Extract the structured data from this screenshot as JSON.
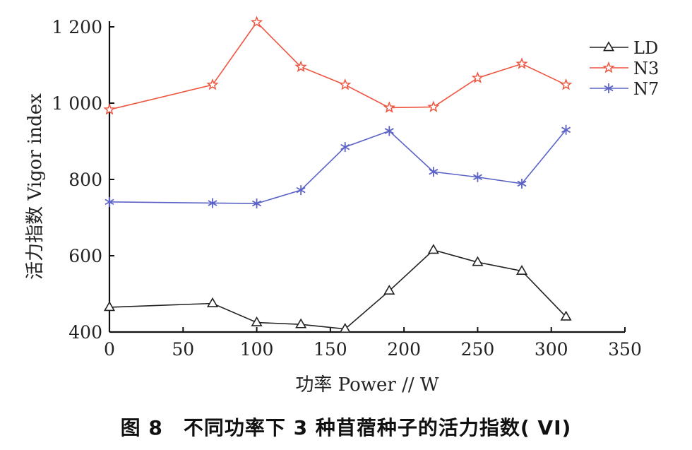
{
  "caption": "图 8　不同功率下 3 种苜蓿种子的活力指数( VI)",
  "chart_data": {
    "type": "line",
    "title": "",
    "xlabel": "功率 Power // W",
    "ylabel": "活力指数 Vigor index",
    "xlim": [
      0,
      350
    ],
    "ylim": [
      400,
      1200
    ],
    "xticks": [
      0,
      50,
      100,
      150,
      200,
      250,
      300,
      350
    ],
    "xtick_labels": [
      "0",
      "50",
      "100",
      "150",
      "200",
      "250",
      "300",
      "350"
    ],
    "yticks": [
      400,
      600,
      800,
      1000,
      1200
    ],
    "ytick_labels": [
      "400",
      "600",
      "800",
      "1 000",
      "1 200"
    ],
    "grid": false,
    "legend_position": "top-right",
    "x": [
      0,
      70,
      100,
      130,
      160,
      190,
      220,
      250,
      280,
      310
    ],
    "series": [
      {
        "name": "LD",
        "color": "#222222",
        "marker": "triangle",
        "values": [
          465,
          475,
          425,
          420,
          408,
          508,
          615,
          583,
          560,
          440
        ]
      },
      {
        "name": "N3",
        "color": "#ee5540",
        "marker": "star",
        "values": [
          983,
          1048,
          1212,
          1095,
          1048,
          988,
          990,
          1066,
          1103,
          1048
        ]
      },
      {
        "name": "N7",
        "color": "#5b63c6",
        "marker": "asterisk",
        "values": [
          741,
          738,
          737,
          772,
          885,
          927,
          820,
          806,
          789,
          930
        ]
      }
    ]
  }
}
